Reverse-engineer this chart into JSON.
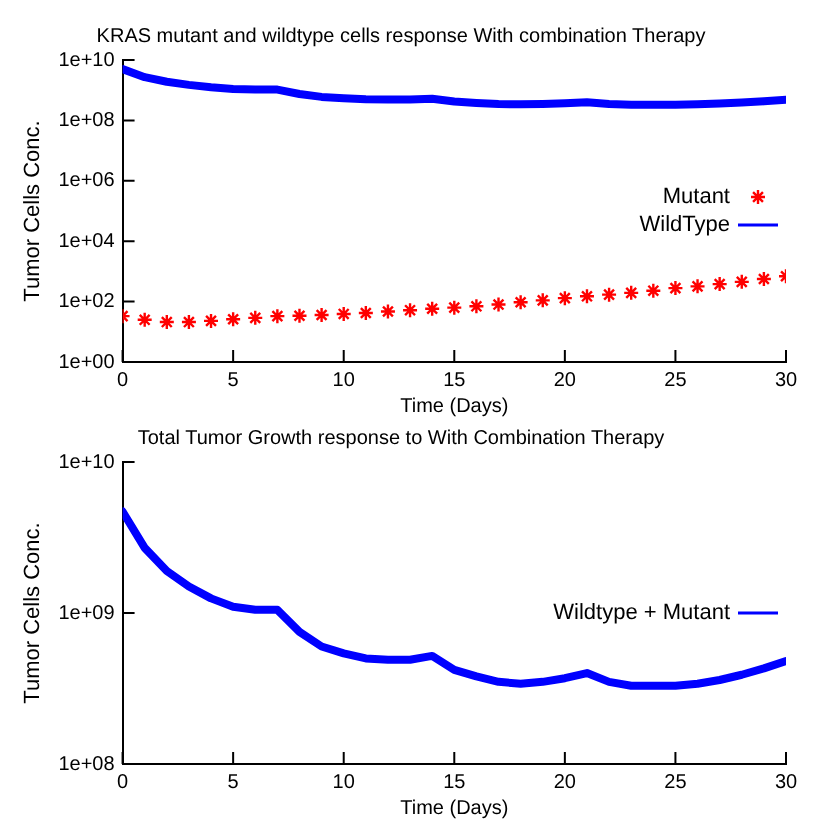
{
  "chart_data": [
    {
      "type": "line",
      "title": "KRAS mutant and wildtype cells response With combination Therapy",
      "xlabel": "Time (Days)",
      "ylabel": "Tumor Cells Conc.",
      "log": "y",
      "grid": false,
      "legend": "right",
      "xlim": [
        0,
        30
      ],
      "xticks": [
        0,
        5,
        10,
        15,
        20,
        25,
        30
      ],
      "ylim": [
        1,
        10000000000
      ],
      "yticks": [
        {
          "value": 1,
          "label": "1e+00"
        },
        {
          "value": 100,
          "label": "1e+02"
        },
        {
          "value": 10000,
          "label": "1e+04"
        },
        {
          "value": 1000000,
          "label": "1e+06"
        },
        {
          "value": 100000000,
          "label": "1e+08"
        },
        {
          "value": 10000000000,
          "label": "1e+10"
        }
      ],
      "x": [
        0,
        1,
        2,
        3,
        4,
        5,
        6,
        7,
        8,
        9,
        10,
        11,
        12,
        13,
        14,
        15,
        16,
        17,
        18,
        19,
        20,
        21,
        22,
        23,
        24,
        25,
        26,
        27,
        28,
        29,
        30
      ],
      "series": [
        {
          "name": "Mutant",
          "color": "#ff0000",
          "type": "scatter",
          "marker": "cross",
          "values": [
            33,
            25,
            21,
            21,
            23,
            26,
            29,
            33,
            34,
            36,
            39,
            42,
            47,
            52,
            58,
            63,
            70,
            80,
            95,
            110,
            130,
            150,
            170,
            195,
            230,
            280,
            320,
            380,
            450,
            560,
            690
          ]
        },
        {
          "name": "WildType",
          "color": "#0000ff",
          "type": "line",
          "marker": "none",
          "values": [
            5000000000,
            2700000000,
            1900000000,
            1500000000,
            1250000000,
            1100000000,
            1050000000,
            1050000000,
            750000000,
            600000000,
            540000000,
            500000000,
            490000000,
            490000000,
            520000000,
            420000000,
            380000000,
            350000000,
            340000000,
            350000000,
            370000000,
            400000000,
            350000000,
            330000000,
            330000000,
            330000000,
            340000000,
            360000000,
            390000000,
            430000000,
            480000000
          ]
        }
      ]
    },
    {
      "type": "line",
      "title": "Total Tumor Growth response to With Combination Therapy",
      "xlabel": "Time (Days)",
      "ylabel": "Tumor Cells Conc.",
      "log": "y",
      "grid": false,
      "legend": "right",
      "xlim": [
        0,
        30
      ],
      "xticks": [
        0,
        5,
        10,
        15,
        20,
        25,
        30
      ],
      "ylim": [
        100000000,
        10000000000
      ],
      "yticks": [
        {
          "value": 100000000,
          "label": "1e+08"
        },
        {
          "value": 1000000000,
          "label": "1e+09"
        },
        {
          "value": 10000000000,
          "label": "1e+10"
        }
      ],
      "x": [
        0,
        1,
        2,
        3,
        4,
        5,
        6,
        7,
        8,
        9,
        10,
        11,
        12,
        13,
        14,
        15,
        16,
        17,
        18,
        19,
        20,
        21,
        22,
        23,
        24,
        25,
        26,
        27,
        28,
        29,
        30
      ],
      "series": [
        {
          "name": "Wildtype + Mutant",
          "color": "#0000ff",
          "type": "line",
          "marker": "none",
          "values": [
            4700000000,
            2700000000,
            1900000000,
            1500000000,
            1250000000,
            1100000000,
            1050000000,
            1050000000,
            750000000,
            600000000,
            540000000,
            500000000,
            490000000,
            490000000,
            520000000,
            420000000,
            380000000,
            350000000,
            340000000,
            350000000,
            370000000,
            400000000,
            350000000,
            330000000,
            330000000,
            330000000,
            340000000,
            360000000,
            390000000,
            430000000,
            480000000
          ]
        }
      ]
    }
  ]
}
